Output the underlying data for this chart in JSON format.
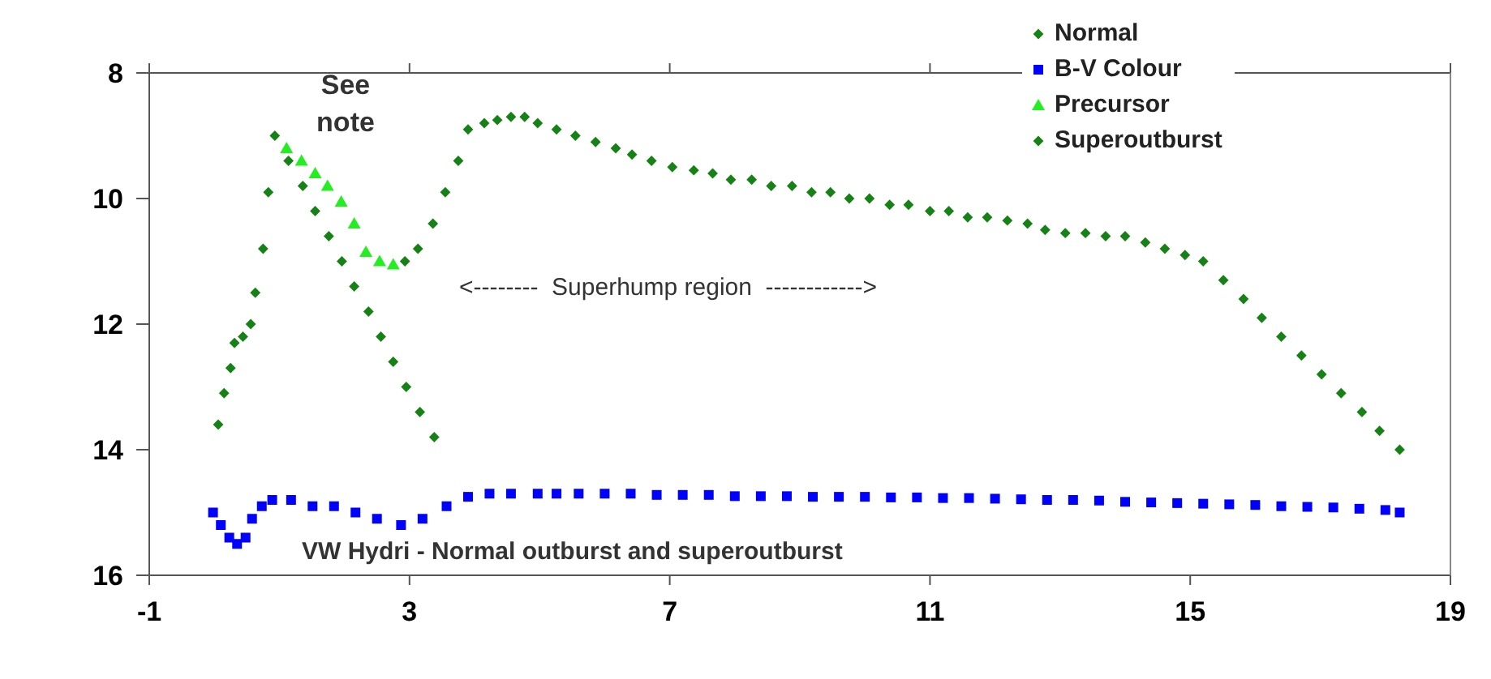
{
  "chart_data": {
    "type": "scatter",
    "title": "VW Hydri - Normal outburst and superoutburst",
    "annotations": [
      "See note",
      "<--------  Superhump region  ------------>"
    ],
    "xlim": [
      -1,
      19
    ],
    "xticks": [
      -1,
      3,
      7,
      11,
      15,
      19
    ],
    "ylim": [
      16,
      8
    ],
    "yticks": [
      8,
      10,
      12,
      14,
      16
    ],
    "grid": false,
    "legend": "top right",
    "series": [
      {
        "name": "Normal",
        "color": "#168216",
        "marker": "diamond",
        "x": [
          0.06,
          0.15,
          0.25,
          0.31,
          0.44,
          0.56,
          0.63,
          0.75,
          0.83,
          0.93,
          1.14,
          1.36,
          1.55,
          1.76,
          1.96,
          2.15,
          2.37,
          2.56,
          2.75,
          2.95,
          3.16,
          3.38
        ],
        "values": [
          13.6,
          13.1,
          12.7,
          12.3,
          12.2,
          12.0,
          11.5,
          10.8,
          9.9,
          9.0,
          9.4,
          9.8,
          10.2,
          10.6,
          11.0,
          11.4,
          11.8,
          12.2,
          12.6,
          13.0,
          13.4,
          13.8
        ]
      },
      {
        "name": "B-V Colour",
        "color": "#0000ff",
        "marker": "square",
        "x": [
          -0.02,
          0.1,
          0.23,
          0.35,
          0.48,
          0.58,
          0.73,
          0.89,
          1.18,
          1.51,
          1.84,
          2.17,
          2.5,
          2.87,
          3.2,
          3.57,
          3.9,
          4.23,
          4.56,
          4.97,
          5.26,
          5.6,
          6.0,
          6.4,
          6.8,
          7.2,
          7.6,
          8.0,
          8.4,
          8.8,
          9.2,
          9.6,
          10.0,
          10.4,
          10.8,
          11.2,
          11.6,
          12.0,
          12.4,
          12.8,
          13.2,
          13.6,
          14.0,
          14.4,
          14.8,
          15.2,
          15.6,
          16.0,
          16.4,
          16.8,
          17.2,
          17.6,
          18.0,
          18.22
        ],
        "values": [
          15.0,
          15.2,
          15.4,
          15.5,
          15.4,
          15.1,
          14.9,
          14.8,
          14.8,
          14.9,
          14.9,
          15.0,
          15.1,
          15.2,
          15.1,
          14.9,
          14.75,
          14.7,
          14.7,
          14.7,
          14.7,
          14.7,
          14.7,
          14.7,
          14.72,
          14.72,
          14.72,
          14.74,
          14.74,
          14.74,
          14.75,
          14.75,
          14.75,
          14.76,
          14.76,
          14.77,
          14.77,
          14.78,
          14.79,
          14.8,
          14.8,
          14.81,
          14.83,
          14.84,
          14.85,
          14.86,
          14.87,
          14.88,
          14.9,
          14.91,
          14.92,
          14.94,
          14.96,
          15.0
        ]
      },
      {
        "name": "Precursor",
        "color": "#22ee22",
        "marker": "triangle",
        "x": [
          1.11,
          1.34,
          1.55,
          1.74,
          1.95,
          2.15,
          2.33,
          2.54,
          2.75
        ],
        "values": [
          9.2,
          9.4,
          9.6,
          9.8,
          10.05,
          10.4,
          10.85,
          11.0,
          11.05
        ]
      },
      {
        "name": "Superoutburst",
        "color": "#168216",
        "marker": "diamond",
        "x": [
          2.93,
          3.13,
          3.36,
          3.55,
          3.75,
          3.9,
          4.15,
          4.35,
          4.56,
          4.77,
          4.97,
          5.26,
          5.55,
          5.86,
          6.17,
          6.42,
          6.72,
          7.04,
          7.37,
          7.66,
          7.94,
          8.26,
          8.56,
          8.88,
          9.18,
          9.47,
          9.76,
          10.07,
          10.38,
          10.67,
          11.0,
          11.29,
          11.58,
          11.88,
          12.19,
          12.5,
          12.77,
          13.08,
          13.39,
          13.7,
          14.0,
          14.31,
          14.61,
          14.92,
          15.2,
          15.51,
          15.82,
          16.1,
          16.4,
          16.71,
          17.02,
          17.32,
          17.64,
          17.91,
          18.22
        ],
        "values": [
          11.0,
          10.8,
          10.4,
          9.9,
          9.4,
          8.9,
          8.8,
          8.75,
          8.7,
          8.7,
          8.8,
          8.9,
          9.0,
          9.1,
          9.2,
          9.3,
          9.4,
          9.5,
          9.55,
          9.6,
          9.7,
          9.7,
          9.8,
          9.8,
          9.9,
          9.9,
          10.0,
          10.0,
          10.1,
          10.1,
          10.2,
          10.2,
          10.3,
          10.3,
          10.35,
          10.4,
          10.5,
          10.55,
          10.55,
          10.6,
          10.6,
          10.7,
          10.8,
          10.9,
          11.0,
          11.3,
          11.6,
          11.9,
          12.2,
          12.5,
          12.8,
          13.1,
          13.4,
          13.7,
          14.0
        ]
      }
    ]
  }
}
